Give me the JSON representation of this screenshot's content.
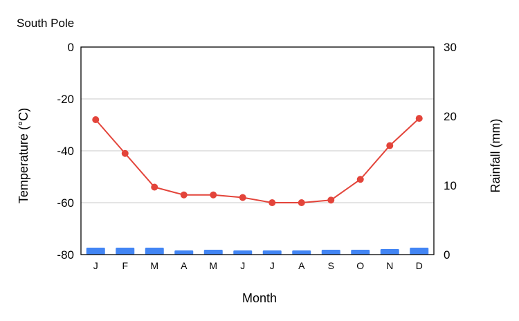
{
  "chart_data": {
    "type": "bar+line",
    "title": "South Pole",
    "xlabel": "Month",
    "ylabel_left": "Temperature (°C)",
    "ylabel_right": "Rainfall (mm)",
    "categories": [
      "J",
      "F",
      "M",
      "A",
      "M",
      "J",
      "J",
      "A",
      "S",
      "O",
      "N",
      "D"
    ],
    "left_axis": {
      "min": -80,
      "max": 0,
      "ticks": [
        0,
        -20,
        -40,
        -60,
        -80
      ]
    },
    "right_axis": {
      "min": 0,
      "max": 30,
      "ticks": [
        30,
        20,
        10,
        0
      ]
    },
    "series": [
      {
        "type": "line",
        "axis": "left",
        "color": "#e3443a",
        "values": [
          -28,
          -41,
          -54,
          -57,
          -57,
          -58,
          -60,
          -60,
          -59,
          -51,
          -38,
          -27.5
        ]
      },
      {
        "type": "bar",
        "axis": "right",
        "color": "#4285f4",
        "values": [
          1.0,
          1.0,
          1.0,
          0.6,
          0.7,
          0.6,
          0.6,
          0.6,
          0.7,
          0.7,
          0.8,
          1.0
        ]
      }
    ],
    "grid": true,
    "legend": "none"
  }
}
